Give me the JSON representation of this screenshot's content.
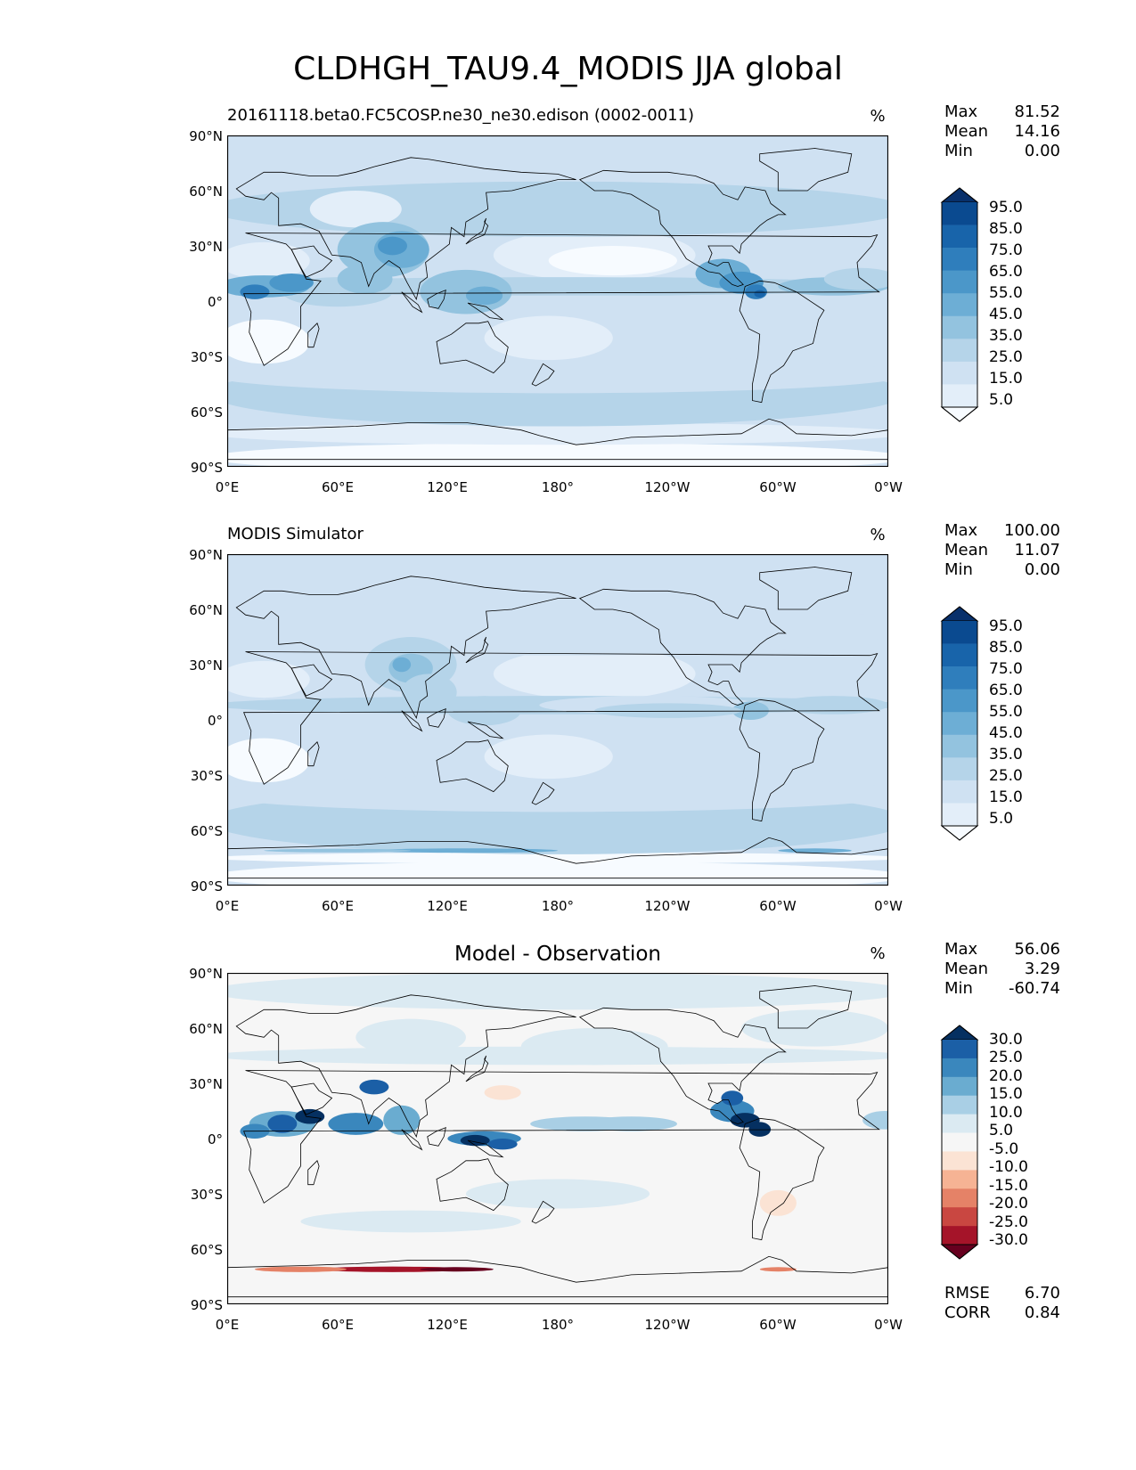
{
  "title": "CLDHGH_TAU9.4_MODIS JJA global",
  "lat_ticks": [
    "90°N",
    "60°N",
    "30°N",
    "0°",
    "30°S",
    "60°S",
    "90°S"
  ],
  "lon_ticks": [
    "0°E",
    "60°E",
    "120°E",
    "180°",
    "120°W",
    "60°W",
    "0°W"
  ],
  "colors": {
    "blues": [
      "#f7fbff",
      "#e3eef9",
      "#cfe1f2",
      "#b5d4e9",
      "#93c3df",
      "#6daed5",
      "#4b97c9",
      "#2f7ebc",
      "#1864aa",
      "#0a4a90",
      "#08306b"
    ],
    "diverging": [
      "#67001f",
      "#a51429",
      "#c94741",
      "#e58267",
      "#f6b394",
      "#fbe3d4",
      "#f6f6f6",
      "#dbeaf2",
      "#a9cfe5",
      "#6aacd0",
      "#3a87bd",
      "#1b5fa6",
      "#053061"
    ],
    "land_outline": "#000000"
  },
  "panels": [
    {
      "title": "20161118.beta0.FC5COSP.ne30_ne30.edison (0002-0011)",
      "units": "%",
      "stats": [
        {
          "label": "Max",
          "value": "81.52"
        },
        {
          "label": "Mean",
          "value": "14.16"
        },
        {
          "label": "Min",
          "value": "0.00"
        }
      ],
      "colorbar": {
        "colormap": "blues",
        "extend": "both",
        "labels": [
          "95.0",
          "85.0",
          "75.0",
          "65.0",
          "55.0",
          "45.0",
          "35.0",
          "25.0",
          "15.0",
          "5.0"
        ]
      }
    },
    {
      "title": "MODIS Simulator",
      "units": "%",
      "stats": [
        {
          "label": "Max",
          "value": "100.00"
        },
        {
          "label": "Mean",
          "value": "11.07"
        },
        {
          "label": "Min",
          "value": "0.00"
        }
      ],
      "colorbar": {
        "colormap": "blues",
        "extend": "both",
        "labels": [
          "95.0",
          "85.0",
          "75.0",
          "65.0",
          "55.0",
          "45.0",
          "35.0",
          "25.0",
          "15.0",
          "5.0"
        ]
      }
    },
    {
      "title": "Model - Observation",
      "units": "%",
      "stats": [
        {
          "label": "Max",
          "value": "56.06"
        },
        {
          "label": "Mean",
          "value": "3.29"
        },
        {
          "label": "Min",
          "value": "-60.74"
        }
      ],
      "colorbar": {
        "colormap": "diverging",
        "extend": "both",
        "labels": [
          "30.0",
          "25.0",
          "20.0",
          "15.0",
          "10.0",
          "5.0",
          "-5.0",
          "-10.0",
          "-15.0",
          "-20.0",
          "-25.0",
          "-30.0"
        ]
      },
      "metrics": [
        {
          "label": "RMSE",
          "value": "6.70"
        },
        {
          "label": "CORR",
          "value": "0.84"
        }
      ]
    }
  ],
  "chart_data": [
    {
      "type": "heatmap",
      "title": "20161118.beta0.FC5COSP.ne30_ne30.edison (0002-0011)",
      "projection": "PlateCarree, central longitude 180",
      "lon_range": [
        0,
        360
      ],
      "lat_range": [
        -90,
        90
      ],
      "units": "%",
      "stats": {
        "max": 81.52,
        "mean": 14.16,
        "min": 0.0
      },
      "levels": [
        0,
        5,
        15,
        25,
        35,
        45,
        55,
        65,
        75,
        85,
        95,
        100
      ],
      "features": [
        {
          "lon": 285,
          "lat": 5,
          "value": 75
        },
        {
          "lon": 80,
          "lat": 25,
          "value": 45
        },
        {
          "lon": 95,
          "lat": 30,
          "value": 45
        },
        {
          "lon": 20,
          "lat": 7,
          "value": 45
        },
        {
          "lon": 130,
          "lat": 8,
          "value": 35
        },
        {
          "lon": 180,
          "lat": 5,
          "value": 25
        },
        {
          "lon": 230,
          "lat": 8,
          "value": 25
        },
        {
          "lon": 330,
          "lat": 8,
          "value": 25
        },
        {
          "lon": 180,
          "lat": 50,
          "value": 20
        },
        {
          "lon": 90,
          "lat": 45,
          "value": 15
        },
        {
          "lon": 180,
          "lat": -40,
          "value": 15
        },
        {
          "lon": 180,
          "lat": -60,
          "value": 15
        },
        {
          "lon": 210,
          "lat": 25,
          "value": 5
        },
        {
          "lon": 170,
          "lat": -15,
          "value": 5
        },
        {
          "lon": 20,
          "lat": -20,
          "value": 5
        },
        {
          "lon": 180,
          "lat": -85,
          "value": 3
        }
      ]
    },
    {
      "type": "heatmap",
      "title": "MODIS Simulator",
      "projection": "PlateCarree, central longitude 180",
      "lon_range": [
        0,
        360
      ],
      "lat_range": [
        -90,
        90
      ],
      "units": "%",
      "stats": {
        "max": 100.0,
        "mean": 11.07,
        "min": 0.0
      },
      "levels": [
        0,
        5,
        15,
        25,
        35,
        45,
        55,
        65,
        75,
        85,
        95,
        100
      ],
      "features": [
        {
          "lon": 100,
          "lat": 30,
          "value": 35
        },
        {
          "lon": 110,
          "lat": 15,
          "value": 25
        },
        {
          "lon": 285,
          "lat": 5,
          "value": 25
        },
        {
          "lon": 140,
          "lat": 5,
          "value": 20
        },
        {
          "lon": 180,
          "lat": 5,
          "value": 15
        },
        {
          "lon": 180,
          "lat": 50,
          "value": 15
        },
        {
          "lon": 180,
          "lat": -45,
          "value": 15
        },
        {
          "lon": 180,
          "lat": -60,
          "value": 15
        },
        {
          "lon": 130,
          "lat": -70,
          "value": 65
        },
        {
          "lon": 320,
          "lat": -70,
          "value": 55
        },
        {
          "lon": 210,
          "lat": 25,
          "value": 5
        },
        {
          "lon": 20,
          "lat": -20,
          "value": 5
        }
      ]
    },
    {
      "type": "heatmap",
      "title": "Model - Observation",
      "projection": "PlateCarree, central longitude 180",
      "lon_range": [
        0,
        360
      ],
      "lat_range": [
        -90,
        90
      ],
      "units": "%",
      "stats": {
        "max": 56.06,
        "mean": 3.29,
        "min": -60.74
      },
      "rmse": 6.7,
      "corr": 0.84,
      "levels": [
        -30,
        -25,
        -20,
        -15,
        -10,
        -5,
        5,
        10,
        15,
        20,
        25,
        30
      ],
      "features": [
        {
          "lon": 30,
          "lat": 8,
          "value": 30
        },
        {
          "lon": 45,
          "lat": 12,
          "value": 30
        },
        {
          "lon": 80,
          "lat": 28,
          "value": 25
        },
        {
          "lon": 70,
          "lat": 8,
          "value": 25
        },
        {
          "lon": 95,
          "lat": 10,
          "value": 20
        },
        {
          "lon": 140,
          "lat": 0,
          "value": 30
        },
        {
          "lon": 275,
          "lat": 15,
          "value": 30
        },
        {
          "lon": 290,
          "lat": 5,
          "value": 30
        },
        {
          "lon": 195,
          "lat": 8,
          "value": 15
        },
        {
          "lon": 358,
          "lat": 10,
          "value": 15
        },
        {
          "lon": 180,
          "lat": 45,
          "value": 10
        },
        {
          "lon": 100,
          "lat": 55,
          "value": 10
        },
        {
          "lon": 150,
          "lat": 25,
          "value": -5
        },
        {
          "lon": 300,
          "lat": -35,
          "value": -5
        },
        {
          "lon": 90,
          "lat": -70,
          "value": -30
        },
        {
          "lon": 40,
          "lat": -70,
          "value": -20
        },
        {
          "lon": 180,
          "lat": -30,
          "value": 5
        }
      ]
    }
  ]
}
